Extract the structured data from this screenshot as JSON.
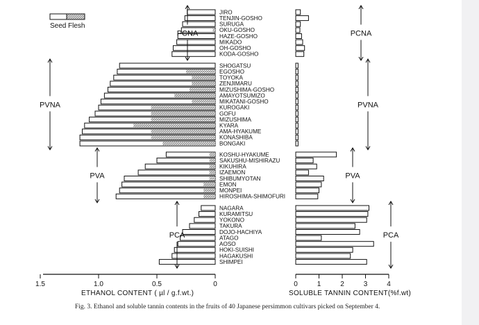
{
  "chart_data": {
    "type": "bar",
    "caption": "Fig. 3.   Ethanol and soluble tannin contents in the fruits of 40 Japanese persimmon cultivars picked on September 4.",
    "legend": {
      "items": [
        "Seed",
        "Flesh"
      ],
      "placement": "top-left"
    },
    "left_panel": {
      "xlabel": "ETHANOL  CONTENT  ( µl / g.f.wt.)",
      "xlim": [
        1.5,
        0
      ],
      "ticks": [
        "1.5",
        "1.0",
        "0.5",
        "0"
      ],
      "reversed": true
    },
    "right_panel": {
      "xlabel": "SOLUBLE  TANNIN  CONTENT(%f.wt)",
      "xlim": [
        0,
        4
      ],
      "ticks": [
        "0",
        "1",
        "2",
        "3",
        "4"
      ]
    },
    "groups": [
      {
        "name": "PCNA",
        "cultivars": [
          {
            "name": "JIRO",
            "flesh": 0.24,
            "seed": 0.0,
            "tannin": 0.2
          },
          {
            "name": "TENJIN-GOSHO",
            "flesh": 0.26,
            "seed": 0.0,
            "tannin": 0.55
          },
          {
            "name": "SURUGA",
            "flesh": 0.28,
            "seed": 0.0,
            "tannin": 0.2
          },
          {
            "name": "OKU-GOSHO",
            "flesh": 0.29,
            "seed": 0.02,
            "tannin": 0.18
          },
          {
            "name": "HAZE-GOSHO",
            "flesh": 0.32,
            "seed": 0.0,
            "tannin": 0.25
          },
          {
            "name": "MIKADO",
            "flesh": 0.33,
            "seed": 0.0,
            "tannin": 0.3
          },
          {
            "name": "OH-GOSHO",
            "flesh": 0.36,
            "seed": 0.0,
            "tannin": 0.38
          },
          {
            "name": "KODA-GOSHO",
            "flesh": 0.37,
            "seed": 0.0,
            "tannin": 0.35
          }
        ]
      },
      {
        "name": "PVNA",
        "cultivars": [
          {
            "name": "SHOGATSU",
            "flesh": 0.82,
            "seed": 0.0,
            "tannin": 0.1
          },
          {
            "name": "EGOSHO",
            "flesh": 0.84,
            "seed": 0.25,
            "tannin": 0.1
          },
          {
            "name": "TOYOKA",
            "flesh": 0.87,
            "seed": 0.2,
            "tannin": 0.1
          },
          {
            "name": "ZENJIMARU",
            "flesh": 0.9,
            "seed": 0.2,
            "tannin": 0.1
          },
          {
            "name": "MIZUSHIMA-GOSHO",
            "flesh": 0.92,
            "seed": 0.22,
            "tannin": 0.1
          },
          {
            "name": "AMAYOTSUMIZO",
            "flesh": 0.95,
            "seed": 0.35,
            "tannin": 0.1
          },
          {
            "name": "MIKATANI-GOSHO",
            "flesh": 0.98,
            "seed": 0.2,
            "tannin": 0.1
          },
          {
            "name": "KUROGAKI",
            "flesh": 1.0,
            "seed": 0.55,
            "tannin": 0.1
          },
          {
            "name": "GOFU",
            "flesh": 1.03,
            "seed": 0.55,
            "tannin": 0.1
          },
          {
            "name": "MIZUSHIMA",
            "flesh": 1.08,
            "seed": 0.55,
            "tannin": 0.1
          },
          {
            "name": "KYARA",
            "flesh": 1.12,
            "seed": 0.7,
            "tannin": 0.1
          },
          {
            "name": "AMA-HYAKUME",
            "flesh": 1.14,
            "seed": 0.55,
            "tannin": 0.1
          },
          {
            "name": "KONASHIBA",
            "flesh": 1.16,
            "seed": 0.55,
            "tannin": 0.1
          },
          {
            "name": "BONGAKI",
            "flesh": 1.16,
            "seed": 0.45,
            "tannin": 0.1
          }
        ]
      },
      {
        "name": "PVA",
        "cultivars": [
          {
            "name": "KOSHU-HYAKUME",
            "flesh": 0.42,
            "seed": 0.05,
            "tannin": 1.75
          },
          {
            "name": "SAKUSHU-MISHIRAZU",
            "flesh": 0.5,
            "seed": 0.05,
            "tannin": 0.75
          },
          {
            "name": "KIKUHIRA",
            "flesh": 0.6,
            "seed": 0.05,
            "tannin": 0.9
          },
          {
            "name": "IZAEMON",
            "flesh": 0.66,
            "seed": 0.05,
            "tannin": 0.55
          },
          {
            "name": "SHIBUMYOTAN",
            "flesh": 0.78,
            "seed": 0.05,
            "tannin": 1.2
          },
          {
            "name": "EMON",
            "flesh": 0.8,
            "seed": 0.1,
            "tannin": 1.1
          },
          {
            "name": "MONPEI",
            "flesh": 0.82,
            "seed": 0.1,
            "tannin": 1.0
          },
          {
            "name": "HIROSHIMA-SHIMOFURI",
            "flesh": 0.85,
            "seed": 0.1,
            "tannin": 0.95
          }
        ]
      },
      {
        "name": "PCA",
        "cultivars": [
          {
            "name": "NAGARA",
            "flesh": 0.12,
            "seed": 0.0,
            "tannin": 3.15
          },
          {
            "name": "KURAMITSU",
            "flesh": 0.14,
            "seed": 0.0,
            "tannin": 3.1
          },
          {
            "name": "YOKONO",
            "flesh": 0.18,
            "seed": 0.0,
            "tannin": 3.05
          },
          {
            "name": "TAKURA",
            "flesh": 0.22,
            "seed": 0.0,
            "tannin": 2.55
          },
          {
            "name": "DOJO-HACHIYA",
            "flesh": 0.28,
            "seed": 0.0,
            "tannin": 2.75
          },
          {
            "name": "ATAGO",
            "flesh": 0.3,
            "seed": 0.0,
            "tannin": 1.1
          },
          {
            "name": "AOSO",
            "flesh": 0.32,
            "seed": 0.0,
            "tannin": 3.35
          },
          {
            "name": "HOKI-SUISHI",
            "flesh": 0.35,
            "seed": 0.0,
            "tannin": 2.45
          },
          {
            "name": "HAGAKUSHI",
            "flesh": 0.37,
            "seed": 0.0,
            "tannin": 2.35
          },
          {
            "name": "SHIMPEI",
            "flesh": 0.48,
            "seed": 0.0,
            "tannin": 3.05
          }
        ]
      }
    ]
  }
}
